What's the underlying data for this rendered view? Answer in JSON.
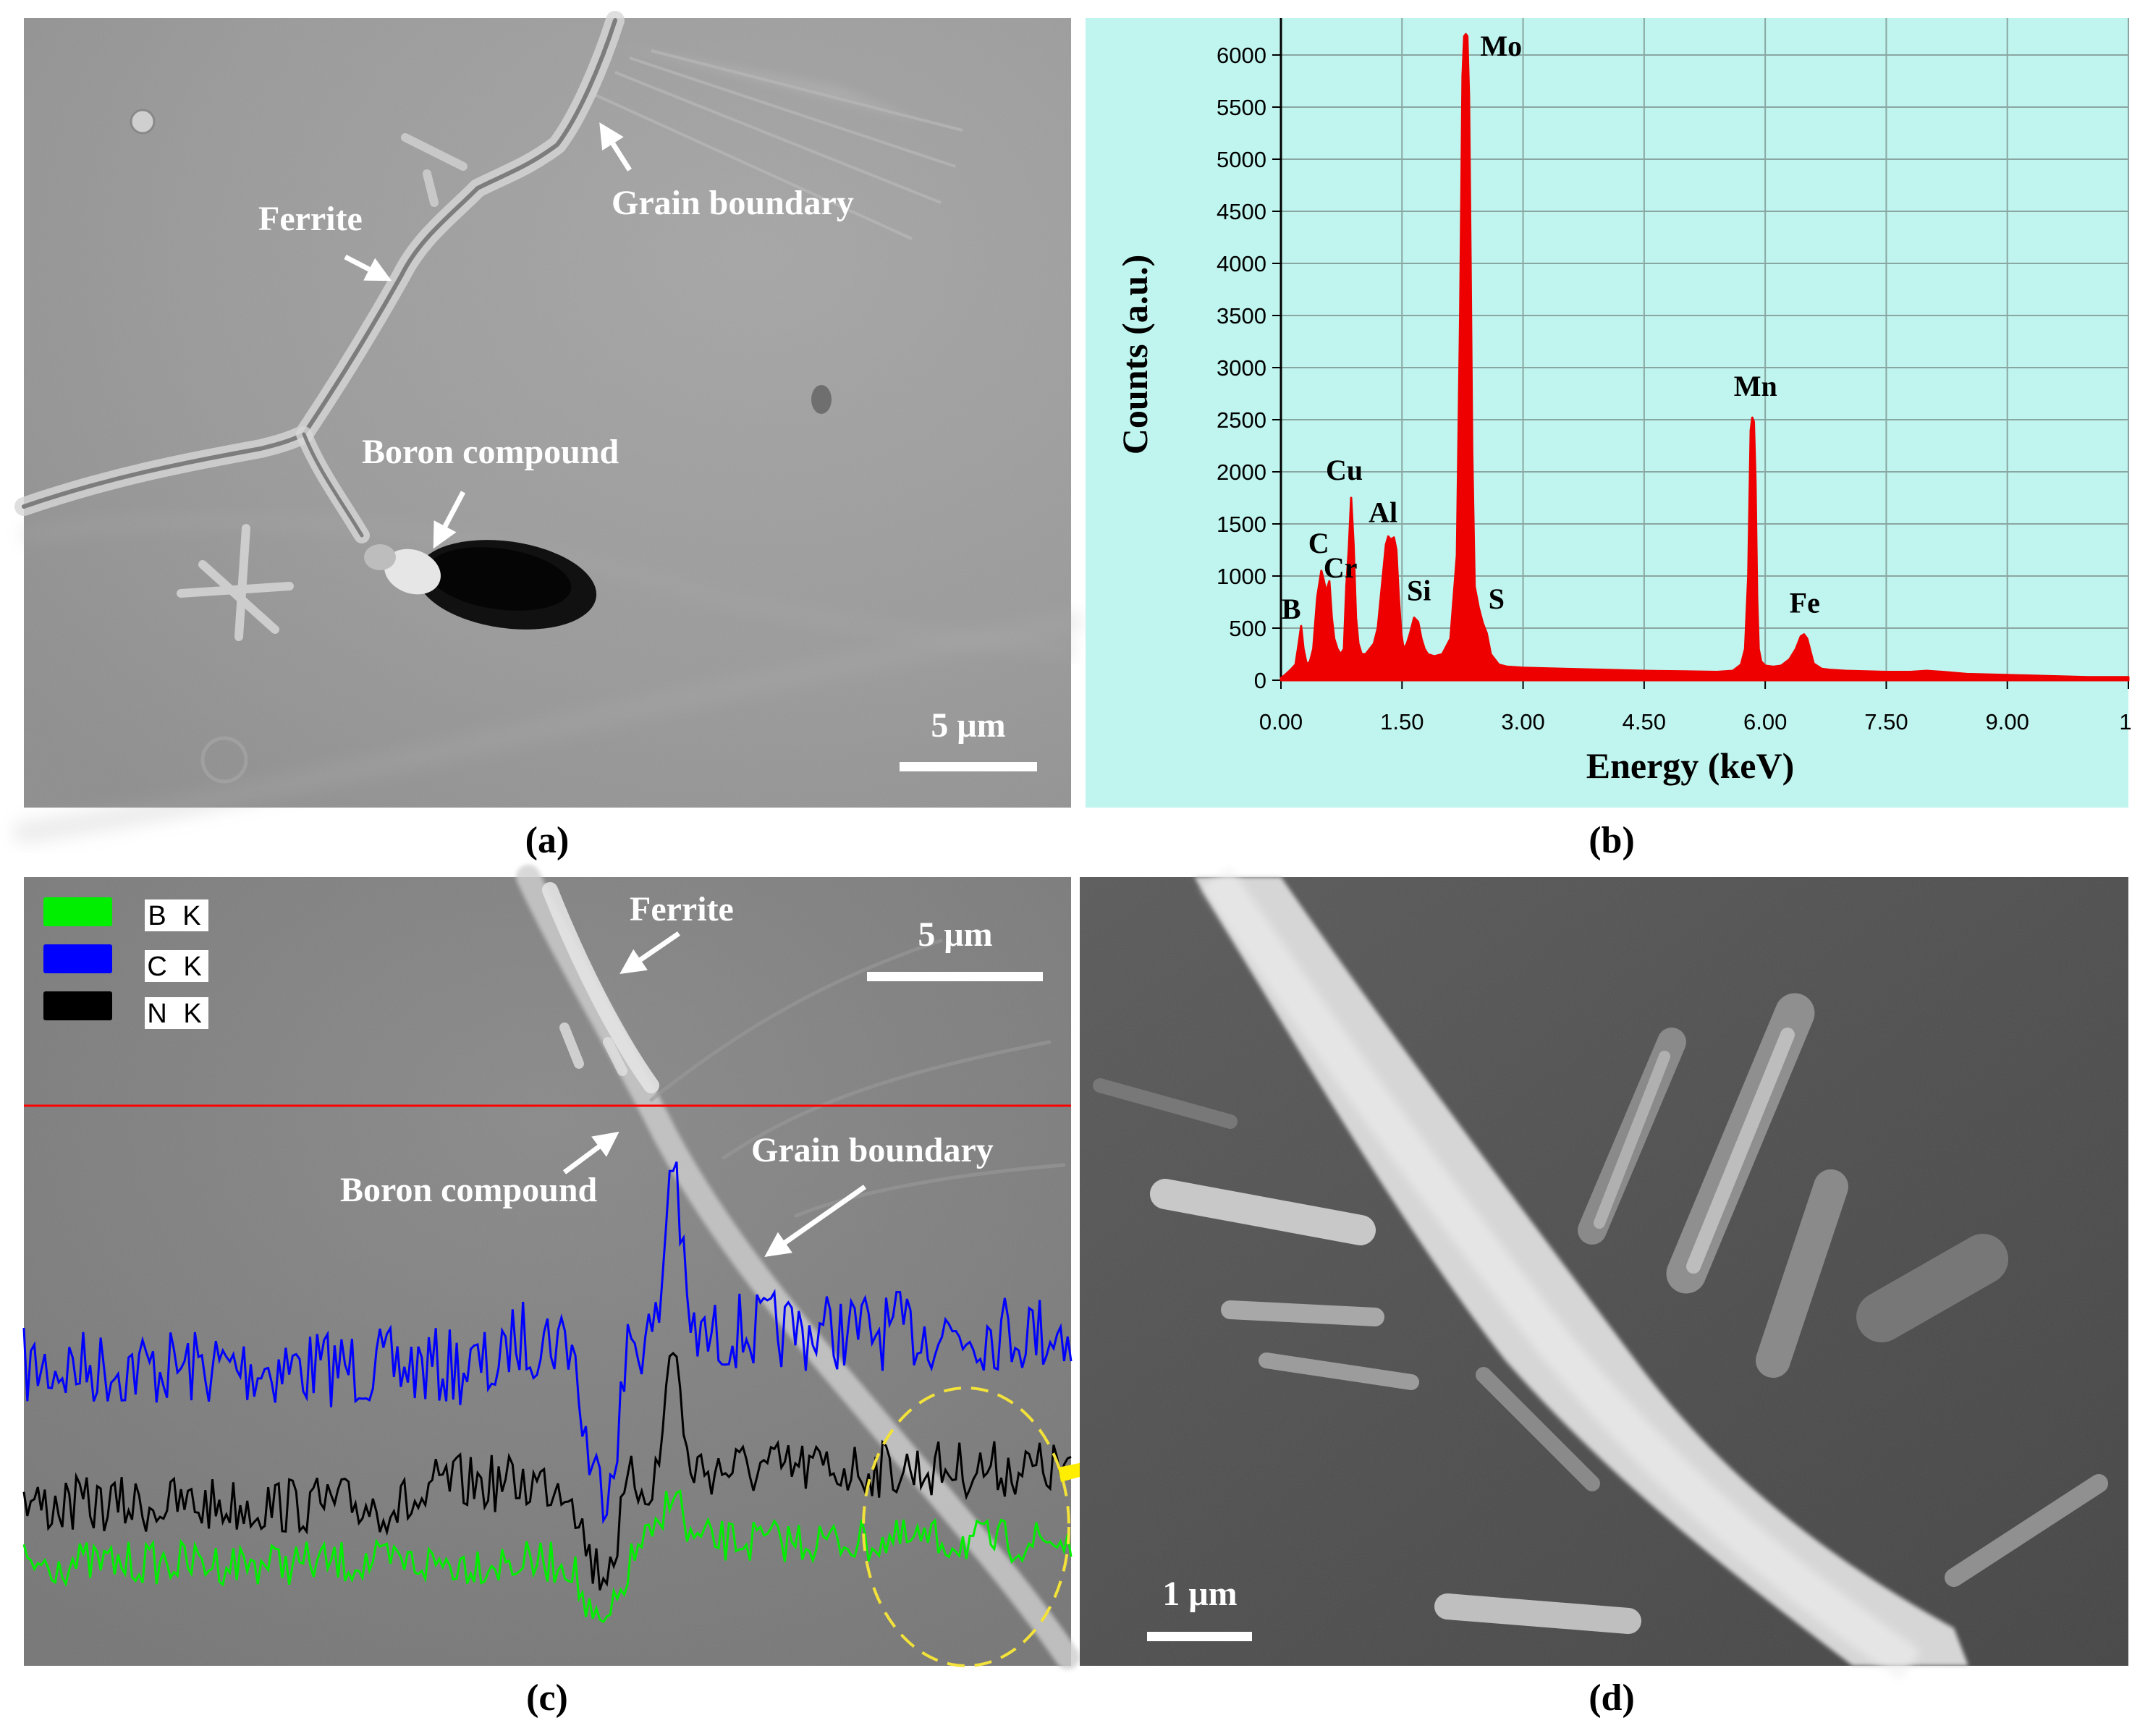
{
  "panels": {
    "a": {
      "label": "(a)",
      "annotations": {
        "ferrite": "Ferrite",
        "grain_boundary": "Grain boundary",
        "boron_compound": "Boron compound"
      },
      "scale_bar": "5 μm"
    },
    "b": {
      "label": "(b)"
    },
    "c": {
      "label": "(c)",
      "legend": [
        {
          "name": "B K",
          "color": "#00ee00"
        },
        {
          "name": "C K",
          "color": "#0000ff"
        },
        {
          "name": "N K",
          "color": "#000000"
        }
      ],
      "annotations": {
        "ferrite": "Ferrite",
        "boron_compound": "Boron compound",
        "grain_boundary": "Grain boundary"
      },
      "scale_bar": "5 μm"
    },
    "d": {
      "label": "(d)",
      "scale_bar": "1 μm"
    }
  },
  "colors": {
    "spectrum": "#ee0000",
    "plot_background": "#bff5ee",
    "scan_line": "#ff0000",
    "highlight_ellipse": "#f2e23a",
    "pointer_arrow": "#ffee00"
  },
  "chart_data": {
    "type": "area",
    "xlabel": "Energy (keV)",
    "ylabel": "Counts (a.u.)",
    "xlim": [
      0,
      10.5
    ],
    "ylim": [
      0,
      6250
    ],
    "xticks": [
      "0.00",
      "1.50",
      "3.00",
      "4.50",
      "6.00",
      "7.50",
      "9.00",
      "1"
    ],
    "yticks": [
      "0",
      "500",
      "1000",
      "1500",
      "2000",
      "2500",
      "3000",
      "3500",
      "4000",
      "4500",
      "5000",
      "5500",
      "6000"
    ],
    "grid": true,
    "series": [
      {
        "x": [
          0.0,
          0.05,
          0.12,
          0.18,
          0.22,
          0.25,
          0.28,
          0.32,
          0.36,
          0.4,
          0.45,
          0.5,
          0.53,
          0.56,
          0.6,
          0.63,
          0.66,
          0.7,
          0.74,
          0.78,
          0.81,
          0.84,
          0.87,
          0.9,
          0.93,
          0.96,
          1.0,
          1.05,
          1.1,
          1.15,
          1.2,
          1.25,
          1.3,
          1.33,
          1.36,
          1.4,
          1.43,
          1.46,
          1.49,
          1.52,
          1.56,
          1.6,
          1.65,
          1.7,
          1.74,
          1.78,
          1.82,
          1.9,
          2.0,
          2.1,
          2.18,
          2.22,
          2.25,
          2.27,
          2.29,
          2.31,
          2.33,
          2.35,
          2.37,
          2.4,
          2.45,
          2.5,
          2.55,
          2.6,
          2.7,
          2.8,
          3.0,
          3.5,
          4.0,
          4.5,
          5.0,
          5.4,
          5.6,
          5.7,
          5.75,
          5.79,
          5.82,
          5.84,
          5.86,
          5.88,
          5.9,
          5.92,
          5.95,
          6.0,
          6.1,
          6.2,
          6.3,
          6.38,
          6.44,
          6.48,
          6.52,
          6.56,
          6.6,
          6.7,
          6.8,
          7.0,
          7.5,
          7.8,
          8.0,
          8.2,
          8.5,
          9.0,
          9.5,
          10.0,
          10.5
        ],
        "y": [
          20,
          50,
          100,
          150,
          350,
          520,
          300,
          150,
          180,
          300,
          800,
          1050,
          960,
          850,
          950,
          600,
          400,
          300,
          250,
          300,
          900,
          1250,
          1750,
          1300,
          600,
          350,
          250,
          250,
          300,
          350,
          500,
          900,
          1300,
          1380,
          1350,
          1370,
          1250,
          800,
          450,
          300,
          350,
          450,
          600,
          560,
          400,
          300,
          250,
          230,
          250,
          400,
          1200,
          3500,
          5800,
          6180,
          6200,
          6180,
          5600,
          4000,
          2200,
          900,
          700,
          550,
          450,
          250,
          150,
          130,
          120,
          110,
          100,
          90,
          85,
          80,
          90,
          150,
          300,
          1000,
          2400,
          2520,
          2480,
          1900,
          800,
          300,
          180,
          140,
          130,
          140,
          200,
          300,
          420,
          440,
          400,
          280,
          160,
          110,
          100,
          90,
          80,
          80,
          90,
          80,
          60,
          50,
          40,
          30,
          30
        ]
      }
    ],
    "annotations": [
      {
        "label": "Mo",
        "x": 2.29,
        "y": 6200
      },
      {
        "label": "Mn",
        "x": 5.88,
        "y": 2520
      },
      {
        "label": "Cu",
        "x": 0.87,
        "y": 1750
      },
      {
        "label": "C",
        "x": 0.5,
        "y": 1050
      },
      {
        "label": "Cr",
        "x": 0.6,
        "y": 950
      },
      {
        "label": "Al",
        "x": 1.4,
        "y": 1380
      },
      {
        "label": "B",
        "x": 0.25,
        "y": 520
      },
      {
        "label": "Si",
        "x": 1.74,
        "y": 560
      },
      {
        "label": "S",
        "x": 2.5,
        "y": 550
      },
      {
        "label": "Fe",
        "x": 6.48,
        "y": 440
      }
    ]
  }
}
